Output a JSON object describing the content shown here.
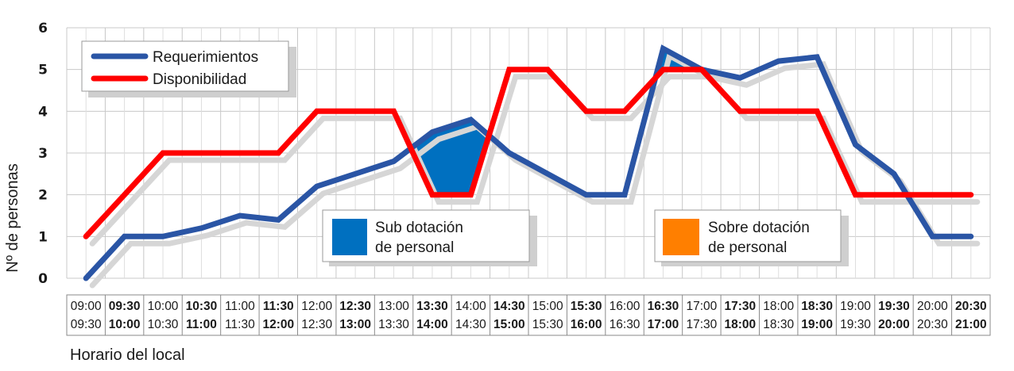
{
  "chart_data": {
    "type": "line",
    "title": "",
    "xlabel": "Horario del local",
    "ylabel": "Nº de personas",
    "ylim": [
      0,
      6
    ],
    "yticks": [
      0,
      1,
      2,
      3,
      4,
      5,
      6
    ],
    "grid": true,
    "categories": [
      {
        "start": "09:00",
        "end": "09:30",
        "bold": false
      },
      {
        "start": "09:30",
        "end": "10:00",
        "bold": true
      },
      {
        "start": "10:00",
        "end": "10:30",
        "bold": false
      },
      {
        "start": "10:30",
        "end": "11:00",
        "bold": true
      },
      {
        "start": "11:00",
        "end": "11:30",
        "bold": false
      },
      {
        "start": "11:30",
        "end": "12:00",
        "bold": true
      },
      {
        "start": "12:00",
        "end": "12:30",
        "bold": false
      },
      {
        "start": "12:30",
        "end": "13:00",
        "bold": true
      },
      {
        "start": "13:00",
        "end": "13:30",
        "bold": false
      },
      {
        "start": "13:30",
        "end": "14:00",
        "bold": true
      },
      {
        "start": "14:00",
        "end": "14:30",
        "bold": false
      },
      {
        "start": "14:30",
        "end": "15:00",
        "bold": true
      },
      {
        "start": "15:00",
        "end": "15:30",
        "bold": false
      },
      {
        "start": "15:30",
        "end": "16:00",
        "bold": true
      },
      {
        "start": "16:00",
        "end": "16:30",
        "bold": false
      },
      {
        "start": "16:30",
        "end": "17:00",
        "bold": true
      },
      {
        "start": "17:00",
        "end": "17:30",
        "bold": false
      },
      {
        "start": "17:30",
        "end": "18:00",
        "bold": true
      },
      {
        "start": "18:00",
        "end": "18:30",
        "bold": false
      },
      {
        "start": "18:30",
        "end": "19:00",
        "bold": true
      },
      {
        "start": "19:00",
        "end": "19:30",
        "bold": false
      },
      {
        "start": "19:30",
        "end": "20:00",
        "bold": true
      },
      {
        "start": "20:00",
        "end": "20:30",
        "bold": false
      },
      {
        "start": "20:30",
        "end": "21:00",
        "bold": true
      }
    ],
    "series": [
      {
        "name": "Requerimientos",
        "color": "#2a55a5",
        "values": [
          0,
          1,
          1,
          1.2,
          1.5,
          1.4,
          2.2,
          2.5,
          2.8,
          3.5,
          3.8,
          3.0,
          2.5,
          2.0,
          2.0,
          5.5,
          5.0,
          4.8,
          5.2,
          5.3,
          3.2,
          2.5,
          1.0,
          1.0
        ]
      },
      {
        "name": "Disponibilidad",
        "color": "#ff0000",
        "values": [
          1,
          2,
          3,
          3,
          3,
          3,
          4,
          4,
          4,
          2,
          2,
          5,
          5,
          4,
          4,
          5,
          5,
          4,
          4,
          4,
          2,
          2,
          2,
          2
        ]
      }
    ],
    "annotations": [
      {
        "label_lines": [
          "Sub dotación",
          "de personal"
        ],
        "color": "#0070c0"
      },
      {
        "label_lines": [
          "Sobre dotación",
          "de personal"
        ],
        "color": "#ff7f00"
      }
    ]
  }
}
